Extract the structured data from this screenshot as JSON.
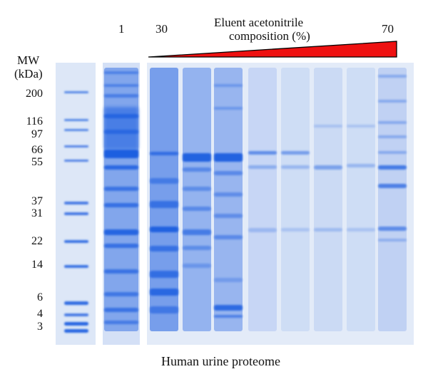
{
  "lane_labels": {
    "first": "1",
    "start": "30",
    "end": "70"
  },
  "gradient_title": {
    "line1": "Eluent acetonitrile",
    "line2": "composition (%)"
  },
  "mw_axis": {
    "title_line1": "MW",
    "title_line2": "(kDa)",
    "ticks": [
      "200",
      "116",
      "97",
      "66",
      "55",
      "37",
      "31",
      "22",
      "14",
      "6",
      "4",
      "3"
    ]
  },
  "caption": "Human urine proteome",
  "colors": {
    "gradient_fill": "#ee1111",
    "band_blue": "#1f5fe0",
    "gel_background": "#dbe6f7"
  }
}
